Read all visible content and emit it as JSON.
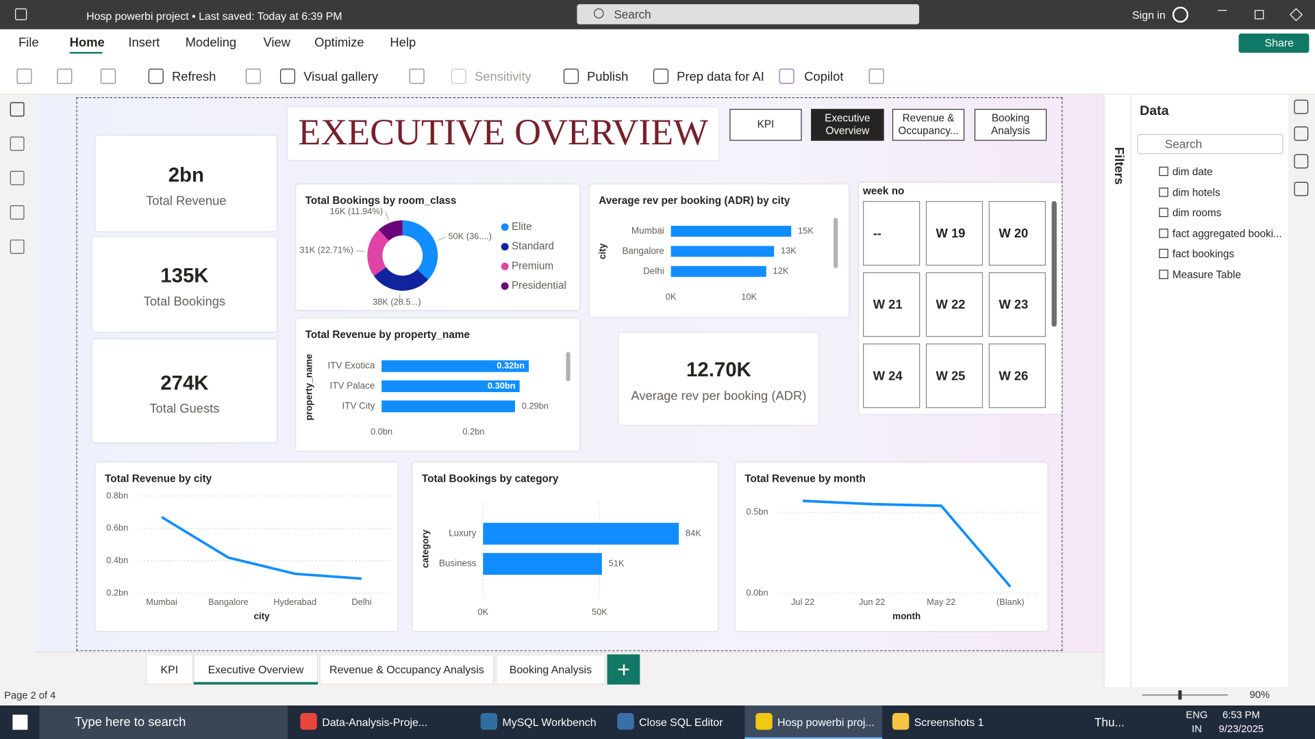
{
  "titlebar": {
    "title": "Hosp powerbi project • Last saved: Today at 6:39 PM",
    "search": "Search",
    "sign_in": "Sign in"
  },
  "menu": [
    "File",
    "Home",
    "Insert",
    "Modeling",
    "View",
    "Optimize",
    "Help"
  ],
  "share": "Share",
  "ribbon": [
    "Refresh",
    "Visual gallery",
    "Sensitivity",
    "Publish",
    "Prep data for AI",
    "Copilot"
  ],
  "report": {
    "title": "EXECUTIVE OVERVIEW",
    "nav": [
      "KPI",
      "Executive Overview",
      "Revenue & Occupancy...",
      "Booking Analysis"
    ],
    "cards": [
      {
        "value": "2bn",
        "label": "Total Revenue"
      },
      {
        "value": "135K",
        "label": "Total Bookings"
      },
      {
        "value": "274K",
        "label": "Total Guests"
      },
      {
        "value": "12.70K",
        "label": "Average rev per booking (ADR)"
      }
    ],
    "slicer": {
      "title": "week no",
      "items": [
        "--",
        "W 19",
        "W 20",
        "W 21",
        "W 22",
        "W 23",
        "W 24",
        "W 25",
        "W 26"
      ]
    },
    "charts": [
      {
        "type": "pie",
        "title": "Total Bookings by room_class",
        "categories": [
          "Elite",
          "Standard",
          "Premium",
          "Presidential"
        ],
        "values": [
          50000,
          38000,
          31000,
          16000
        ],
        "value_labels": [
          "50K (36....)",
          "38K (28.5...)",
          "31K (22.71%)",
          "16K (11.94%)"
        ],
        "colors": [
          "#118dff",
          "#12239e",
          "#e044a7",
          "#6b007b"
        ]
      },
      {
        "type": "bar",
        "title": "Average rev per booking (ADR) by city",
        "ylabel": "city",
        "categories": [
          "Mumbai",
          "Bangalore",
          "Delhi"
        ],
        "values": [
          15400,
          13200,
          12200
        ],
        "value_labels": [
          "15K",
          "13K",
          "12K"
        ],
        "color": "#118dff",
        "xlim": [
          0,
          19000
        ],
        "xticks": [
          {
            "value": 0,
            "label": "0K"
          },
          {
            "value": 10000,
            "label": "10K"
          }
        ],
        "grid": false
      },
      {
        "type": "bar",
        "title": "Total Revenue by property_name",
        "ylabel": "property_name",
        "categories": [
          "ITV Exotica",
          "ITV Palace",
          "ITV City"
        ],
        "values": [
          0.32,
          0.3,
          0.29
        ],
        "value_labels": [
          "0.32bn",
          "0.30bn",
          "0.29bn"
        ],
        "color": "#118dff",
        "xlim": [
          0,
          0.37
        ],
        "xticks": [
          {
            "value": 0,
            "label": "0.0bn"
          },
          {
            "value": 0.2,
            "label": "0.2bn"
          }
        ],
        "grid": false
      },
      {
        "type": "line",
        "title": "Total Revenue by city",
        "xlabel": "city",
        "categories": [
          "Mumbai",
          "Bangalore",
          "Hyderabad",
          "Delhi"
        ],
        "values": [
          0.67,
          0.42,
          0.32,
          0.29
        ],
        "color": "#118dff",
        "ylim": [
          0.2,
          0.8
        ],
        "yticks": [
          {
            "value": 0.2,
            "label": "0.2bn"
          },
          {
            "value": 0.4,
            "label": "0.4bn"
          },
          {
            "value": 0.6,
            "label": "0.6bn"
          },
          {
            "value": 0.8,
            "label": "0.8bn"
          }
        ],
        "grid": true
      },
      {
        "type": "bar",
        "title": "Total Bookings by category",
        "ylabel": "category",
        "categories": [
          "Luxury",
          "Business"
        ],
        "values": [
          84000,
          51000
        ],
        "value_labels": [
          "84K",
          "51K"
        ],
        "color": "#118dff",
        "xlim": [
          0,
          95000
        ],
        "xticks": [
          {
            "value": 0,
            "label": "0K"
          },
          {
            "value": 50000,
            "label": "50K"
          }
        ],
        "grid": true
      },
      {
        "type": "line",
        "title": "Total Revenue by month",
        "xlabel": "month",
        "categories": [
          "Jul 22",
          "Jun 22",
          "May 22",
          "(Blank)"
        ],
        "values": [
          0.57,
          0.55,
          0.54,
          0.04
        ],
        "color": "#118dff",
        "ylim": [
          0,
          0.6
        ],
        "yticks": [
          {
            "value": 0,
            "label": "0.0bn"
          },
          {
            "value": 0.5,
            "label": "0.5bn"
          }
        ],
        "grid": true
      }
    ]
  },
  "filters": "Filters",
  "data_pane": {
    "title": "Data",
    "search": "Search",
    "tables": [
      "dim date",
      "dim hotels",
      "dim rooms",
      "fact aggregated booki...",
      "fact bookings",
      "Measure Table"
    ]
  },
  "pages": {
    "tabs": [
      "KPI",
      "Executive Overview",
      "Revenue & Occupancy Analysis",
      "Booking Analysis"
    ],
    "status": "Page 2 of 4",
    "zoom": "90%"
  },
  "taskbar": {
    "search": "Type here to search",
    "apps": [
      "Data-Analysis-Proje...",
      "MySQL Workbench",
      "Close SQL Editor",
      "Hosp powerbi proj...",
      "Screenshots 1"
    ],
    "weather": "Thu...",
    "lang": "ENG",
    "region": "IN",
    "time": "6:53 PM",
    "date": "9/23/2025"
  }
}
